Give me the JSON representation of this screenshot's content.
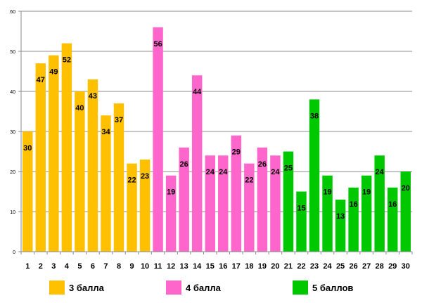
{
  "chart_data": {
    "type": "bar",
    "title": "",
    "xlabel": "",
    "ylabel": "",
    "ylim": [
      0,
      60
    ],
    "yticks": [
      "0",
      "10",
      "20",
      "30",
      "40",
      "50",
      "60"
    ],
    "categories": [
      "1",
      "2",
      "3",
      "4",
      "5",
      "6",
      "7",
      "8",
      "9",
      "10",
      "11",
      "12",
      "13",
      "14",
      "15",
      "16",
      "17",
      "18",
      "19",
      "20",
      "21",
      "22",
      "23",
      "24",
      "25",
      "26",
      "27",
      "28",
      "29",
      "30"
    ],
    "values": [
      30,
      47,
      49,
      52,
      40,
      43,
      34,
      37,
      22,
      23,
      56,
      19,
      26,
      44,
      24,
      24,
      29,
      22,
      26,
      24,
      25,
      15,
      38,
      19,
      13,
      16,
      19,
      24,
      16,
      20
    ],
    "groups": [
      {
        "name": "3 балла",
        "color": "#FFC000",
        "count": 10
      },
      {
        "name": "4 балла",
        "color": "#FF66CC",
        "count": 10
      },
      {
        "name": "5 баллов",
        "color": "#00C800",
        "count": 10
      }
    ],
    "grid": true
  },
  "legend": [
    {
      "label": "3 балла",
      "color": "#FFC000"
    },
    {
      "label": "4 балла",
      "color": "#FF66CC"
    },
    {
      "label": "5 баллов",
      "color": "#00C800"
    }
  ]
}
